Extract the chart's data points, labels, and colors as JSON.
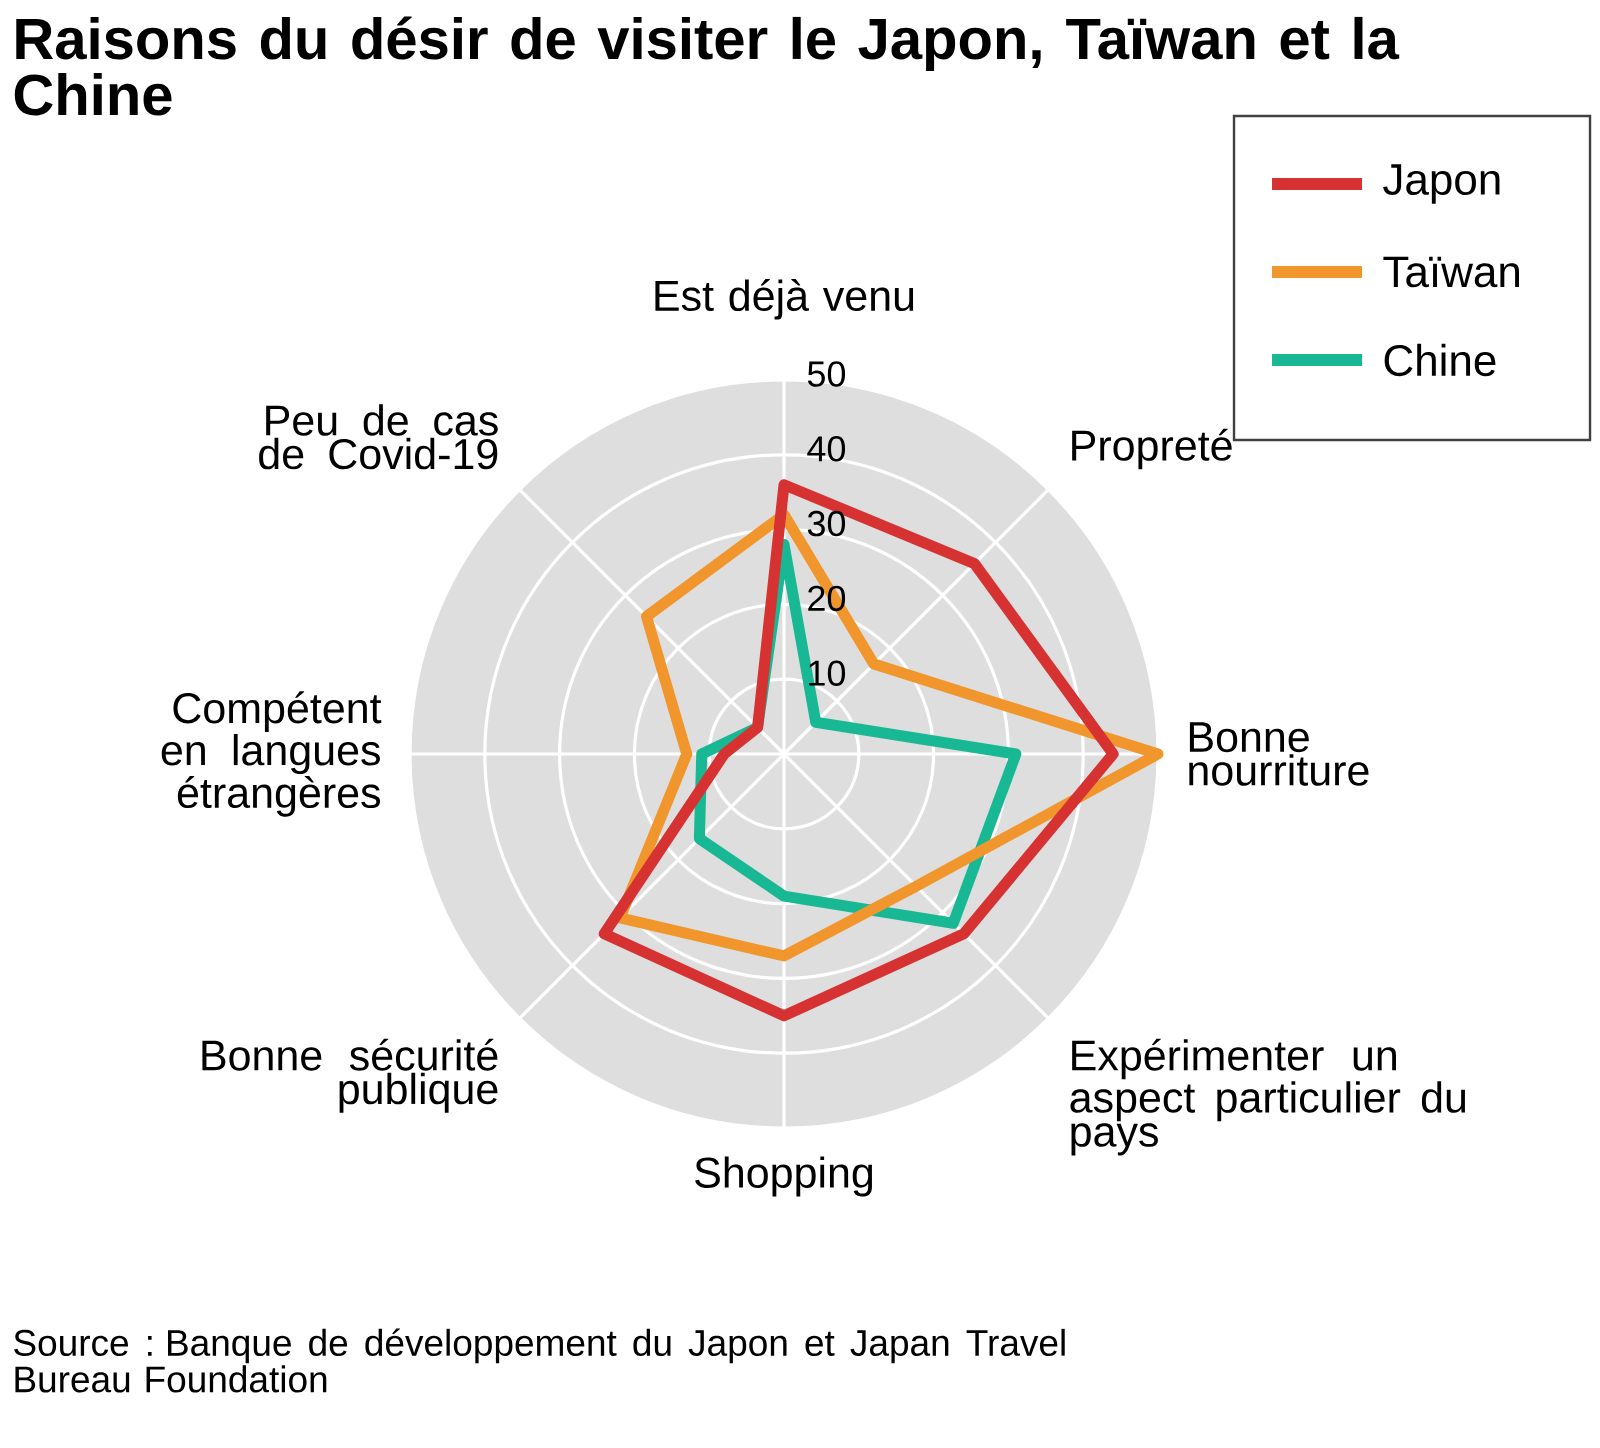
{
  "chart_data": {
    "type": "radar",
    "title": "Raisons du désir de visiter le Japon, Taïwan et la Chine",
    "categories": [
      "Est déjà venu",
      "Propreté",
      "Bonne nourriture",
      "Expérimenter un aspect particulier du pays",
      "Shopping",
      "Bonne sécurité publique",
      "Compétent en langues étrangères",
      "Peu de cas de Covid-19"
    ],
    "series": [
      {
        "name": "Japon",
        "color": "#d63232",
        "values": [
          36,
          36,
          44,
          34,
          35,
          34,
          8,
          5
        ]
      },
      {
        "name": "Taïwan",
        "color": "#f0962d",
        "values": [
          32,
          17,
          50,
          25,
          27,
          31,
          13,
          26
        ]
      },
      {
        "name": "Chine",
        "color": "#19b894",
        "values": [
          28,
          6,
          31,
          32,
          19,
          16,
          11,
          5
        ]
      }
    ],
    "ylim": [
      0,
      50
    ],
    "yticks": [
      10,
      20,
      30,
      40,
      50
    ],
    "grid": true,
    "legend": "top right",
    "annotations": [
      "Source : Banque de développement du Japon et Japan Travel Bureau Foundation"
    ]
  }
}
